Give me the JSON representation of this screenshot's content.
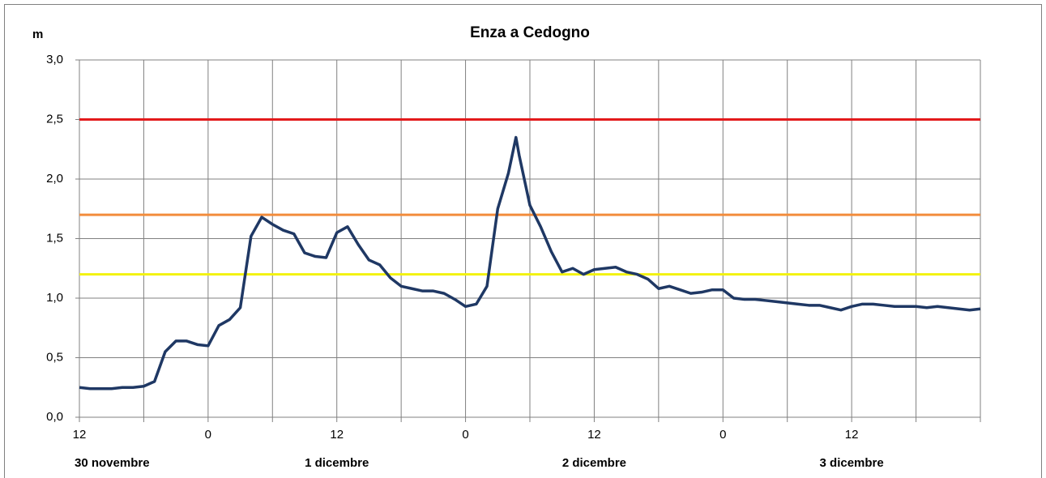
{
  "chart_data": {
    "type": "line",
    "title": "Enza a Cedogno",
    "y_label": "m",
    "x": [
      12,
      13,
      14,
      15,
      16,
      17,
      18,
      19,
      20,
      21,
      22,
      23,
      24,
      25,
      26,
      27,
      28,
      29,
      30,
      31,
      32,
      33,
      34,
      35,
      36,
      37,
      38,
      39,
      40,
      41,
      42,
      43,
      44,
      45,
      46,
      47,
      48,
      49,
      50,
      51,
      52,
      52.7,
      53,
      54,
      55,
      56,
      57,
      58,
      59,
      60,
      61,
      62,
      63,
      64,
      65,
      66,
      67,
      68,
      69,
      70,
      71,
      72,
      73,
      74,
      75,
      76,
      77,
      78,
      79,
      80,
      81,
      82,
      83,
      84,
      85,
      86,
      87,
      88,
      89,
      90,
      91,
      92,
      93,
      94,
      95,
      96
    ],
    "series": [
      {
        "color": "#1f3864",
        "values": [
          0.25,
          0.24,
          0.24,
          0.24,
          0.25,
          0.25,
          0.26,
          0.3,
          0.55,
          0.64,
          0.64,
          0.61,
          0.6,
          0.77,
          0.82,
          0.92,
          1.52,
          1.68,
          1.62,
          1.57,
          1.54,
          1.38,
          1.35,
          1.34,
          1.55,
          1.6,
          1.45,
          1.32,
          1.28,
          1.17,
          1.1,
          1.08,
          1.06,
          1.06,
          1.04,
          0.99,
          0.93,
          0.95,
          1.1,
          1.75,
          2.05,
          2.35,
          2.2,
          1.78,
          1.6,
          1.39,
          1.22,
          1.25,
          1.2,
          1.24,
          1.25,
          1.26,
          1.22,
          1.2,
          1.16,
          1.08,
          1.1,
          1.07,
          1.04,
          1.05,
          1.07,
          1.07,
          1.0,
          0.99,
          0.99,
          0.98,
          0.97,
          0.96,
          0.95,
          0.94,
          0.94,
          0.92,
          0.9,
          0.93,
          0.95,
          0.95,
          0.94,
          0.93,
          0.93,
          0.93,
          0.92,
          0.93,
          0.92,
          0.91,
          0.9,
          0.91
        ]
      }
    ],
    "thresholds": [
      {
        "value": 2.5,
        "color": "#e31a1c"
      },
      {
        "value": 1.7,
        "color": "#f28c3c"
      },
      {
        "value": 1.2,
        "color": "#f2f20f"
      }
    ],
    "xlim": [
      12,
      96
    ],
    "xticks": [
      12,
      {
        "value": 24,
        "label": "0"
      },
      {
        "value": 36,
        "label": "12"
      },
      {
        "value": 48,
        "label": "0"
      },
      {
        "value": 60,
        "label": "12"
      },
      {
        "value": 72,
        "label": "0"
      },
      {
        "value": 84,
        "label": "12"
      }
    ],
    "xgrid": [
      12,
      18,
      24,
      30,
      36,
      42,
      48,
      54,
      60,
      66,
      72,
      78,
      84,
      90,
      96
    ],
    "days": [
      "30 novembre",
      "1 dicembre",
      "2 dicembre",
      "3 dicembre"
    ],
    "ylim": [
      0,
      3
    ],
    "yticks": [
      {
        "value": 0,
        "label": "0,0"
      },
      {
        "value": 0.5,
        "label": "0,5"
      },
      {
        "value": 1,
        "label": "1,0"
      },
      {
        "value": 1.5,
        "label": "1,5"
      },
      {
        "value": 2,
        "label": "2,0"
      },
      {
        "value": 2.5,
        "label": "2,5"
      },
      {
        "value": 3,
        "label": "3,0"
      }
    ],
    "grid": true
  }
}
